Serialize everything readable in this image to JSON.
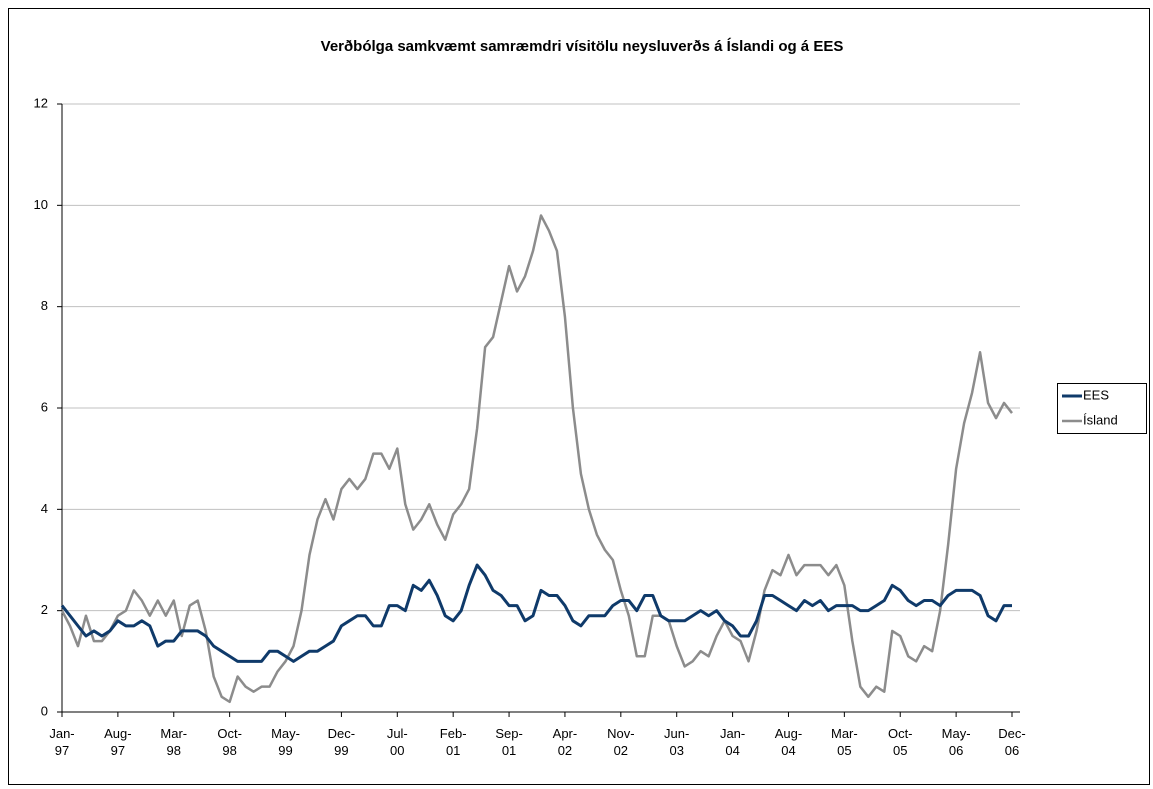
{
  "chart_data": {
    "type": "line",
    "title": "Verðbólga samkvæmt samræmdri vísitölu neysluverðs á Íslandi og á EES",
    "categories": [
      "Jan-97",
      null,
      null,
      null,
      null,
      null,
      null,
      "Aug-97",
      null,
      null,
      null,
      null,
      null,
      null,
      "Mar-98",
      null,
      null,
      null,
      null,
      null,
      null,
      "Oct-98",
      null,
      null,
      null,
      null,
      null,
      null,
      "May-99",
      null,
      null,
      null,
      null,
      null,
      null,
      "Dec-99",
      null,
      null,
      null,
      null,
      null,
      null,
      "Jul-00",
      null,
      null,
      null,
      null,
      null,
      null,
      "Feb-01",
      null,
      null,
      null,
      null,
      null,
      null,
      "Sep-01",
      null,
      null,
      null,
      null,
      null,
      null,
      "Apr-02",
      null,
      null,
      null,
      null,
      null,
      null,
      "Nov-02",
      null,
      null,
      null,
      null,
      null,
      null,
      "Jun-03",
      null,
      null,
      null,
      null,
      null,
      null,
      "Jan-04",
      null,
      null,
      null,
      null,
      null,
      null,
      "Aug-04",
      null,
      null,
      null,
      null,
      null,
      null,
      "Mar-05",
      null,
      null,
      null,
      null,
      null,
      null,
      "Oct-05",
      null,
      null,
      null,
      null,
      null,
      null,
      "May-06",
      null,
      null,
      null,
      null,
      null,
      null,
      "Dec-06"
    ],
    "series": [
      {
        "name": "EES",
        "color": "#0f3a6a",
        "values": [
          2.1,
          1.9,
          1.7,
          1.5,
          1.6,
          1.5,
          1.6,
          1.8,
          1.7,
          1.7,
          1.8,
          1.7,
          1.3,
          1.4,
          1.4,
          1.6,
          1.6,
          1.6,
          1.5,
          1.3,
          1.2,
          1.1,
          1.0,
          1.0,
          1.0,
          1.0,
          1.2,
          1.2,
          1.1,
          1.0,
          1.1,
          1.2,
          1.2,
          1.3,
          1.4,
          1.7,
          1.8,
          1.9,
          1.9,
          1.7,
          1.7,
          2.1,
          2.1,
          2.0,
          2.5,
          2.4,
          2.6,
          2.3,
          1.9,
          1.8,
          2.0,
          2.5,
          2.9,
          2.7,
          2.4,
          2.3,
          2.1,
          2.1,
          1.8,
          1.9,
          2.4,
          2.3,
          2.3,
          2.1,
          1.8,
          1.7,
          1.9,
          1.9,
          1.9,
          2.1,
          2.2,
          2.2,
          2.0,
          2.3,
          2.3,
          1.9,
          1.8,
          1.8,
          1.8,
          1.9,
          2.0,
          1.9,
          2.0,
          1.8,
          1.7,
          1.5,
          1.5,
          1.8,
          2.3,
          2.3,
          2.2,
          2.1,
          2.0,
          2.2,
          2.1,
          2.2,
          2.0,
          2.1,
          2.1,
          2.1,
          2.0,
          2.0,
          2.1,
          2.2,
          2.5,
          2.4,
          2.2,
          2.1,
          2.2,
          2.2,
          2.1,
          2.3,
          2.4,
          2.4,
          2.4,
          2.3,
          1.9,
          1.8,
          2.1,
          2.1
        ]
      },
      {
        "name": "Ísland",
        "color": "#8c8c8c",
        "values": [
          2.0,
          1.7,
          1.3,
          1.9,
          1.4,
          1.4,
          1.6,
          1.9,
          2.0,
          2.4,
          2.2,
          1.9,
          2.2,
          1.9,
          2.2,
          1.5,
          2.1,
          2.2,
          1.6,
          0.7,
          0.3,
          0.2,
          0.7,
          0.5,
          0.4,
          0.5,
          0.5,
          0.8,
          1.0,
          1.3,
          2.0,
          3.1,
          3.8,
          4.2,
          3.8,
          4.4,
          4.6,
          4.4,
          4.6,
          5.1,
          5.1,
          4.8,
          5.2,
          4.1,
          3.6,
          3.8,
          4.1,
          3.7,
          3.4,
          3.9,
          4.1,
          4.4,
          5.6,
          7.2,
          7.4,
          8.1,
          8.8,
          8.3,
          8.6,
          9.1,
          9.8,
          9.5,
          9.1,
          7.8,
          6.0,
          4.7,
          4.0,
          3.5,
          3.2,
          3.0,
          2.4,
          1.9,
          1.1,
          1.1,
          1.9,
          1.9,
          1.8,
          1.3,
          0.9,
          1.0,
          1.2,
          1.1,
          1.5,
          1.8,
          1.5,
          1.4,
          1.0,
          1.6,
          2.4,
          2.8,
          2.7,
          3.1,
          2.7,
          2.9,
          2.9,
          2.9,
          2.7,
          2.9,
          2.5,
          1.4,
          0.5,
          0.3,
          0.5,
          0.4,
          1.6,
          1.5,
          1.1,
          1.0,
          1.3,
          1.2,
          2.0,
          3.3,
          4.8,
          5.7,
          6.3,
          7.1,
          6.1,
          5.8,
          6.1,
          5.9
        ]
      }
    ],
    "ylim": [
      0,
      12
    ],
    "yticks": [
      0,
      2,
      4,
      6,
      8,
      10,
      12
    ],
    "grid": true,
    "legend": "right"
  }
}
